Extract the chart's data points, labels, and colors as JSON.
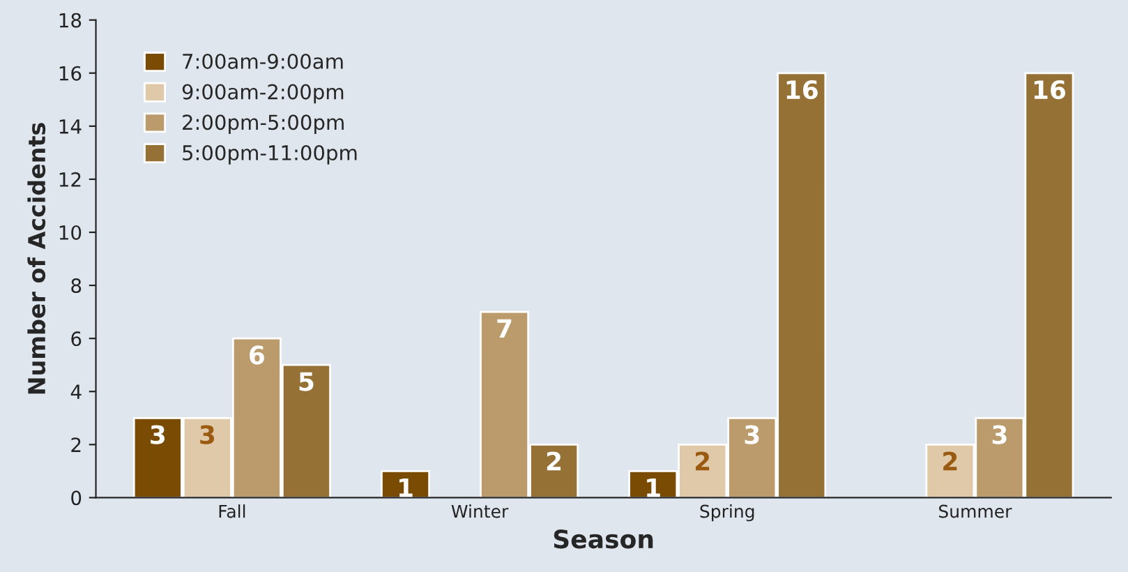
{
  "chart_data": {
    "type": "bar",
    "xlabel": "Season",
    "ylabel": "Number of Accidents",
    "categories": [
      "Fall",
      "Winter",
      "Spring",
      "Summer"
    ],
    "series": [
      {
        "name": "7:00am-9:00am",
        "color": "#7a4b02",
        "values": [
          3,
          1,
          1,
          null
        ]
      },
      {
        "name": "9:00am-2:00pm",
        "color": "#e0c9a9",
        "values": [
          3,
          null,
          2,
          2
        ]
      },
      {
        "name": "2:00pm-5:00pm",
        "color": "#bb9a6b",
        "values": [
          6,
          7,
          3,
          3
        ]
      },
      {
        "name": "5:00pm-11:00pm",
        "color": "#957136",
        "values": [
          5,
          2,
          16,
          16
        ]
      }
    ],
    "ylim": [
      0,
      18
    ],
    "yticks": [
      0,
      2,
      4,
      6,
      8,
      10,
      12,
      14,
      16,
      18
    ],
    "data_labels": true,
    "legend": "top left",
    "grid": false
  }
}
